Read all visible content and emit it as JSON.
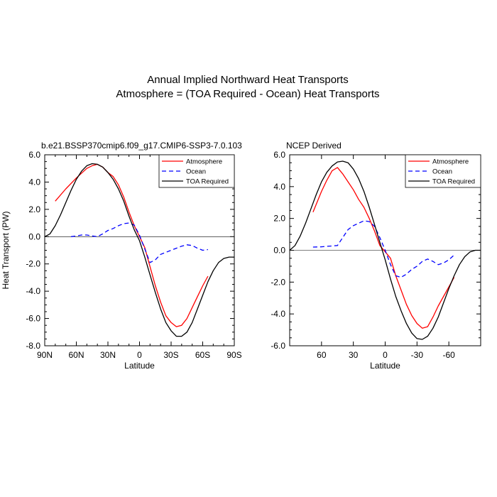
{
  "figure": {
    "title_line1": "Annual Implied Northward Heat Transports",
    "title_line2": "Atmosphere = (TOA Required - Ocean) Heat Transports"
  },
  "chart_data": [
    {
      "type": "line",
      "title": "b.e21.BSSP370cmip6.f09_g17.CMIP6-SSP3-7.0.103",
      "xlabel": "Latitude",
      "ylabel": "Heat Transport (PW)",
      "xlim": [
        90,
        -90
      ],
      "ylim": [
        -8,
        6
      ],
      "x_ticks": [
        {
          "value": 90,
          "label": "90N"
        },
        {
          "value": 60,
          "label": "60N"
        },
        {
          "value": 30,
          "label": "30N"
        },
        {
          "value": 0,
          "label": "0"
        },
        {
          "value": -30,
          "label": "30S"
        },
        {
          "value": -60,
          "label": "60S"
        },
        {
          "value": -90,
          "label": "90S"
        }
      ],
      "y_ticks": [
        {
          "value": 6,
          "label": "6.0"
        },
        {
          "value": 4,
          "label": "4.0"
        },
        {
          "value": 2,
          "label": "2.0"
        },
        {
          "value": 0,
          "label": "0.0"
        },
        {
          "value": -2,
          "label": "-2.0"
        },
        {
          "value": -4,
          "label": "-4.0"
        },
        {
          "value": -6,
          "label": "-6.0"
        },
        {
          "value": -8,
          "label": "-8.0"
        }
      ],
      "legend_position": "top-right",
      "series": [
        {
          "name": "Atmosphere",
          "color": "#ff0000",
          "dash": "solid",
          "x": [
            80,
            70,
            60,
            50,
            45,
            40,
            35,
            30,
            25,
            20,
            15,
            10,
            5,
            0,
            -5,
            -10,
            -15,
            -20,
            -25,
            -30,
            -35,
            -40,
            -45,
            -50,
            -55,
            -60,
            -65
          ],
          "y": [
            2.6,
            3.5,
            4.3,
            5.0,
            5.2,
            5.3,
            5.1,
            4.7,
            4.4,
            3.8,
            2.9,
            1.8,
            0.8,
            0.0,
            -0.8,
            -2.2,
            -3.6,
            -4.8,
            -5.8,
            -6.3,
            -6.6,
            -6.5,
            -6.0,
            -5.2,
            -4.4,
            -3.6,
            -2.9
          ]
        },
        {
          "name": "Ocean",
          "color": "#0000ff",
          "dash": "dashed",
          "x": [
            65,
            60,
            55,
            50,
            45,
            40,
            35,
            30,
            25,
            20,
            15,
            10,
            5,
            0,
            -5,
            -10,
            -15,
            -20,
            -25,
            -30,
            -35,
            -40,
            -45,
            -50,
            -55,
            -60,
            -65
          ],
          "y": [
            0.0,
            0.05,
            0.12,
            0.12,
            0.05,
            0.0,
            0.2,
            0.45,
            0.6,
            0.8,
            0.95,
            1.0,
            0.85,
            0.1,
            -0.9,
            -1.9,
            -1.7,
            -1.3,
            -1.15,
            -1.0,
            -0.85,
            -0.7,
            -0.6,
            -0.65,
            -0.85,
            -1.0,
            -0.95
          ]
        },
        {
          "name": "TOA Required",
          "color": "#000000",
          "dash": "solid",
          "x": [
            90,
            85,
            80,
            75,
            70,
            65,
            60,
            55,
            50,
            45,
            40,
            35,
            30,
            25,
            20,
            15,
            10,
            5,
            0,
            -5,
            -10,
            -15,
            -20,
            -25,
            -30,
            -35,
            -40,
            -45,
            -50,
            -55,
            -60,
            -65,
            -70,
            -75,
            -80,
            -85,
            -90
          ],
          "y": [
            0.0,
            0.2,
            0.8,
            1.6,
            2.5,
            3.4,
            4.2,
            4.8,
            5.2,
            5.35,
            5.3,
            5.1,
            4.7,
            4.2,
            3.5,
            2.6,
            1.5,
            0.5,
            -0.3,
            -1.5,
            -2.8,
            -4.1,
            -5.3,
            -6.3,
            -6.9,
            -7.3,
            -7.3,
            -7.0,
            -6.3,
            -5.3,
            -4.3,
            -3.3,
            -2.5,
            -1.9,
            -1.6,
            -1.5,
            -1.5
          ]
        }
      ]
    },
    {
      "type": "line",
      "title": "NCEP Derived",
      "xlabel": "Latitude",
      "ylabel": "",
      "xlim": [
        90,
        -90
      ],
      "ylim": [
        -6,
        6
      ],
      "x_ticks": [
        {
          "value": 60,
          "label": "60"
        },
        {
          "value": 30,
          "label": "30"
        },
        {
          "value": 0,
          "label": "0"
        },
        {
          "value": -30,
          "label": "-30"
        },
        {
          "value": -60,
          "label": "-60"
        }
      ],
      "y_ticks": [
        {
          "value": 6,
          "label": "6.0"
        },
        {
          "value": 4,
          "label": "4.0"
        },
        {
          "value": 2,
          "label": "2.0"
        },
        {
          "value": 0,
          "label": "0.0"
        },
        {
          "value": -2,
          "label": "-2.0"
        },
        {
          "value": -4,
          "label": "-4.0"
        },
        {
          "value": -6,
          "label": "-6.0"
        }
      ],
      "legend_position": "top-right",
      "series": [
        {
          "name": "Atmosphere",
          "color": "#ff0000",
          "dash": "solid",
          "x": [
            68,
            60,
            55,
            50,
            45,
            40,
            35,
            30,
            25,
            20,
            15,
            10,
            5,
            0,
            -5,
            -10,
            -15,
            -20,
            -25,
            -30,
            -35,
            -40,
            -45,
            -50,
            -55,
            -60,
            -65
          ],
          "y": [
            2.4,
            3.7,
            4.4,
            5.0,
            5.2,
            4.8,
            4.3,
            3.8,
            3.2,
            2.7,
            2.0,
            1.2,
            0.3,
            -0.1,
            -0.5,
            -1.6,
            -2.5,
            -3.4,
            -4.1,
            -4.6,
            -4.9,
            -4.8,
            -4.2,
            -3.5,
            -2.9,
            -2.3,
            -1.7
          ]
        },
        {
          "name": "Ocean",
          "color": "#0000ff",
          "dash": "dashed",
          "x": [
            68,
            60,
            55,
            50,
            45,
            40,
            35,
            30,
            25,
            20,
            15,
            10,
            5,
            0,
            -5,
            -10,
            -15,
            -20,
            -25,
            -30,
            -35,
            -40,
            -45,
            -50,
            -55,
            -60,
            -65
          ],
          "y": [
            0.2,
            0.22,
            0.25,
            0.27,
            0.3,
            0.8,
            1.3,
            1.55,
            1.7,
            1.85,
            1.8,
            1.5,
            0.8,
            0.0,
            -0.9,
            -1.6,
            -1.7,
            -1.5,
            -1.2,
            -1.0,
            -0.7,
            -0.55,
            -0.7,
            -0.9,
            -0.8,
            -0.6,
            -0.3
          ]
        },
        {
          "name": "TOA Required",
          "color": "#000000",
          "dash": "solid",
          "x": [
            90,
            85,
            80,
            75,
            70,
            65,
            60,
            55,
            50,
            45,
            40,
            35,
            30,
            25,
            20,
            15,
            10,
            5,
            0,
            -5,
            -10,
            -15,
            -20,
            -25,
            -30,
            -35,
            -40,
            -45,
            -50,
            -55,
            -60,
            -65,
            -70,
            -75,
            -80,
            -85,
            -90
          ],
          "y": [
            0.0,
            0.3,
            0.9,
            1.7,
            2.6,
            3.5,
            4.3,
            4.9,
            5.3,
            5.55,
            5.6,
            5.5,
            5.1,
            4.5,
            3.7,
            2.7,
            1.6,
            0.5,
            -0.6,
            -1.8,
            -2.9,
            -3.8,
            -4.6,
            -5.2,
            -5.55,
            -5.6,
            -5.4,
            -4.9,
            -4.2,
            -3.3,
            -2.4,
            -1.6,
            -0.9,
            -0.4,
            -0.1,
            0.0,
            0.0
          ]
        }
      ]
    }
  ]
}
